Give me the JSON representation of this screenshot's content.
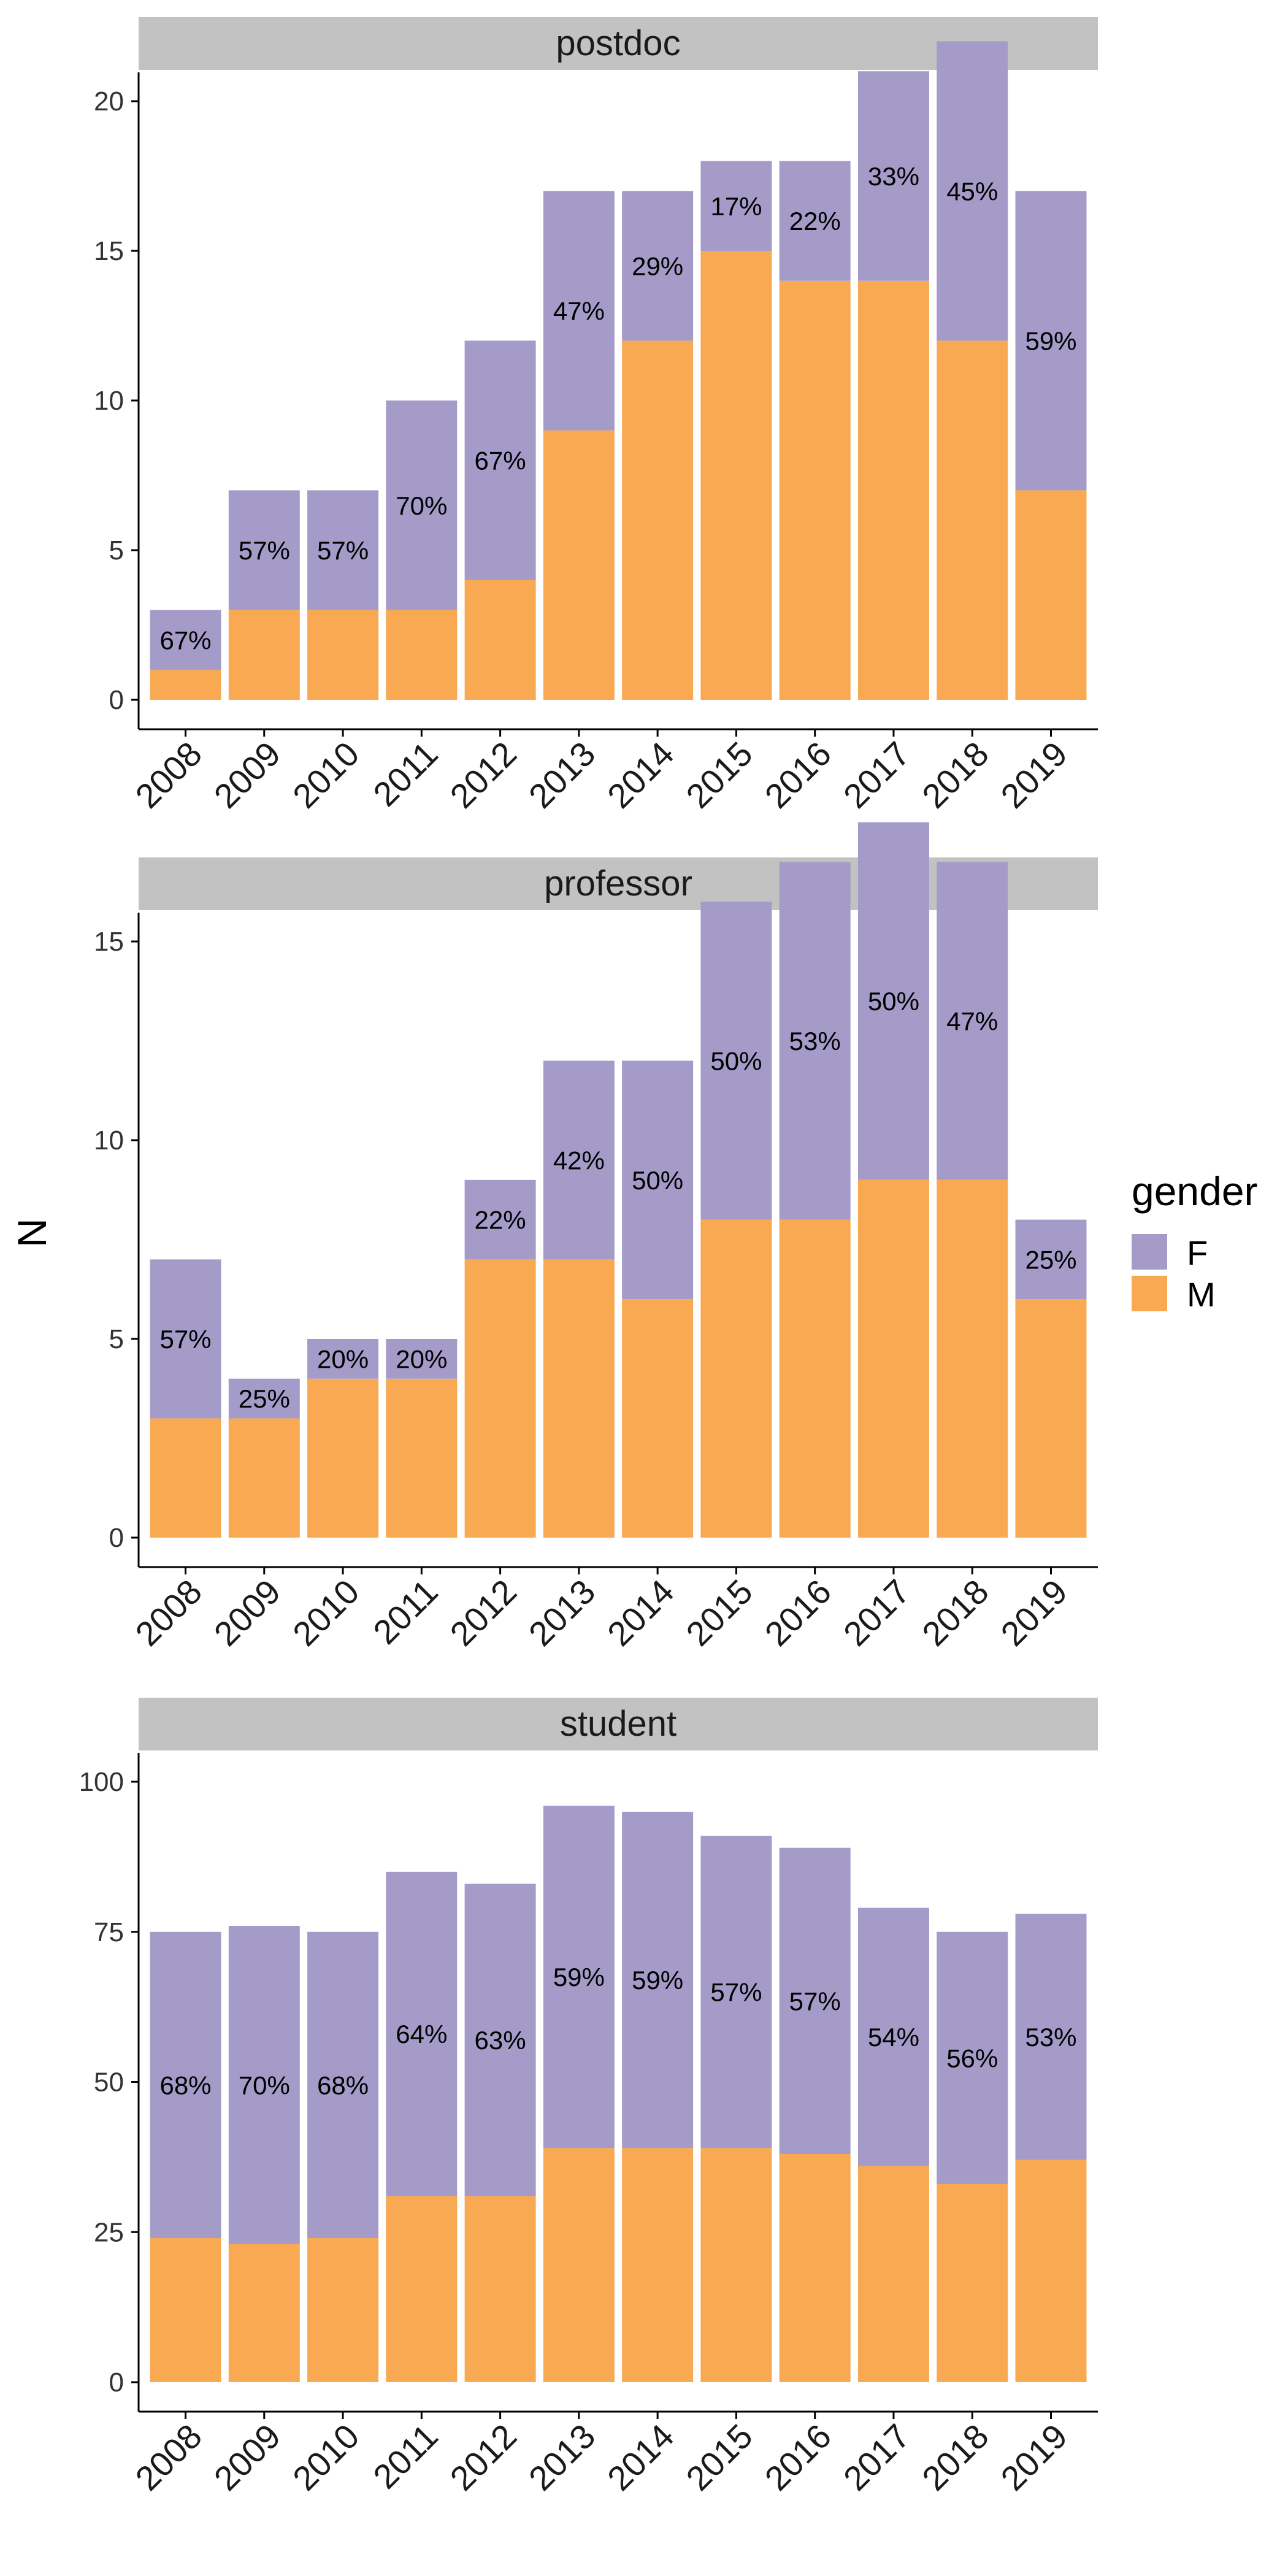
{
  "colors": {
    "F": "#a49bc9",
    "M": "#f8a952",
    "strip": "#c2c2c2",
    "axis": "#000000"
  },
  "chart_data": {
    "type": "bar",
    "stacked": true,
    "ylabel": "N",
    "xlabel": "",
    "legend": {
      "title": "gender",
      "position": "right",
      "entries": [
        {
          "key": "F",
          "label": "F"
        },
        {
          "key": "M",
          "label": "M"
        }
      ]
    },
    "categories": [
      "2008",
      "2009",
      "2010",
      "2011",
      "2012",
      "2013",
      "2014",
      "2015",
      "2016",
      "2017",
      "2018",
      "2019"
    ],
    "panels": [
      {
        "name": "postdoc",
        "ylim": [
          0,
          22
        ],
        "yticks": [
          0,
          5,
          10,
          15,
          20
        ],
        "series": [
          {
            "name": "M",
            "values": [
              1,
              3,
              3,
              3,
              4,
              9,
              12,
              15,
              14,
              14,
              12,
              7
            ]
          },
          {
            "name": "F",
            "values": [
              2,
              4,
              4,
              7,
              8,
              8,
              5,
              3,
              4,
              7,
              10,
              10
            ]
          }
        ],
        "labels": [
          "67%",
          "57%",
          "57%",
          "70%",
          "67%",
          "47%",
          "29%",
          "17%",
          "22%",
          "33%",
          "45%",
          "59%"
        ]
      },
      {
        "name": "professor",
        "ylim": [
          0,
          18
        ],
        "yticks": [
          0,
          5,
          10,
          15
        ],
        "series": [
          {
            "name": "M",
            "values": [
              3,
              3,
              4,
              4,
              7,
              7,
              6,
              8,
              8,
              9,
              9,
              6
            ]
          },
          {
            "name": "F",
            "values": [
              4,
              1,
              1,
              1,
              2,
              5,
              6,
              8,
              9,
              9,
              8,
              2
            ]
          }
        ],
        "labels": [
          "57%",
          "25%",
          "20%",
          "20%",
          "22%",
          "42%",
          "50%",
          "50%",
          "53%",
          "50%",
          "47%",
          "25%"
        ]
      },
      {
        "name": "student",
        "ylim": [
          0,
          100
        ],
        "yticks": [
          0,
          25,
          50,
          75,
          100
        ],
        "series": [
          {
            "name": "M",
            "values": [
              24,
              23,
              24,
              31,
              31,
              39,
              39,
              39,
              38,
              36,
              33,
              37
            ]
          },
          {
            "name": "F",
            "values": [
              51,
              53,
              51,
              54,
              52,
              57,
              56,
              52,
              51,
              43,
              42,
              41
            ]
          }
        ],
        "labels": [
          "68%",
          "70%",
          "68%",
          "64%",
          "63%",
          "59%",
          "59%",
          "57%",
          "57%",
          "54%",
          "56%",
          "53%"
        ]
      }
    ]
  }
}
